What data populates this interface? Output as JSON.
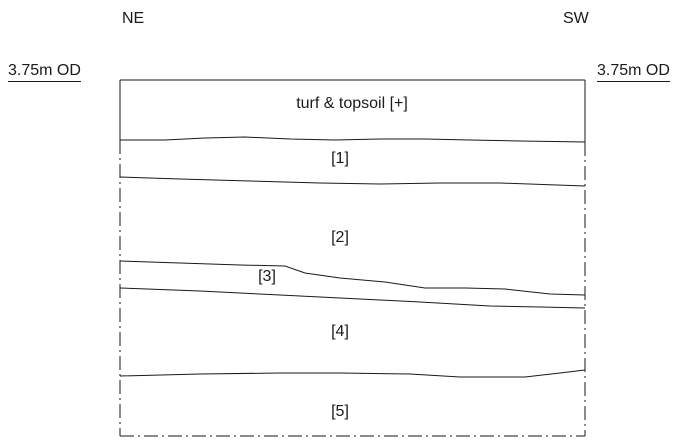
{
  "orientation": {
    "left": "NE",
    "right": "SW"
  },
  "datum": {
    "left": "3.75m OD",
    "right": "3.75m OD"
  },
  "contexts": {
    "topsoil": "turf & topsoil [+]",
    "c1": "[1]",
    "c2": "[2]",
    "c3": "[3]",
    "c4": "[4]",
    "c5": "[5]"
  },
  "colors": {
    "line": "#1a1a1a",
    "background": "#ffffff"
  }
}
